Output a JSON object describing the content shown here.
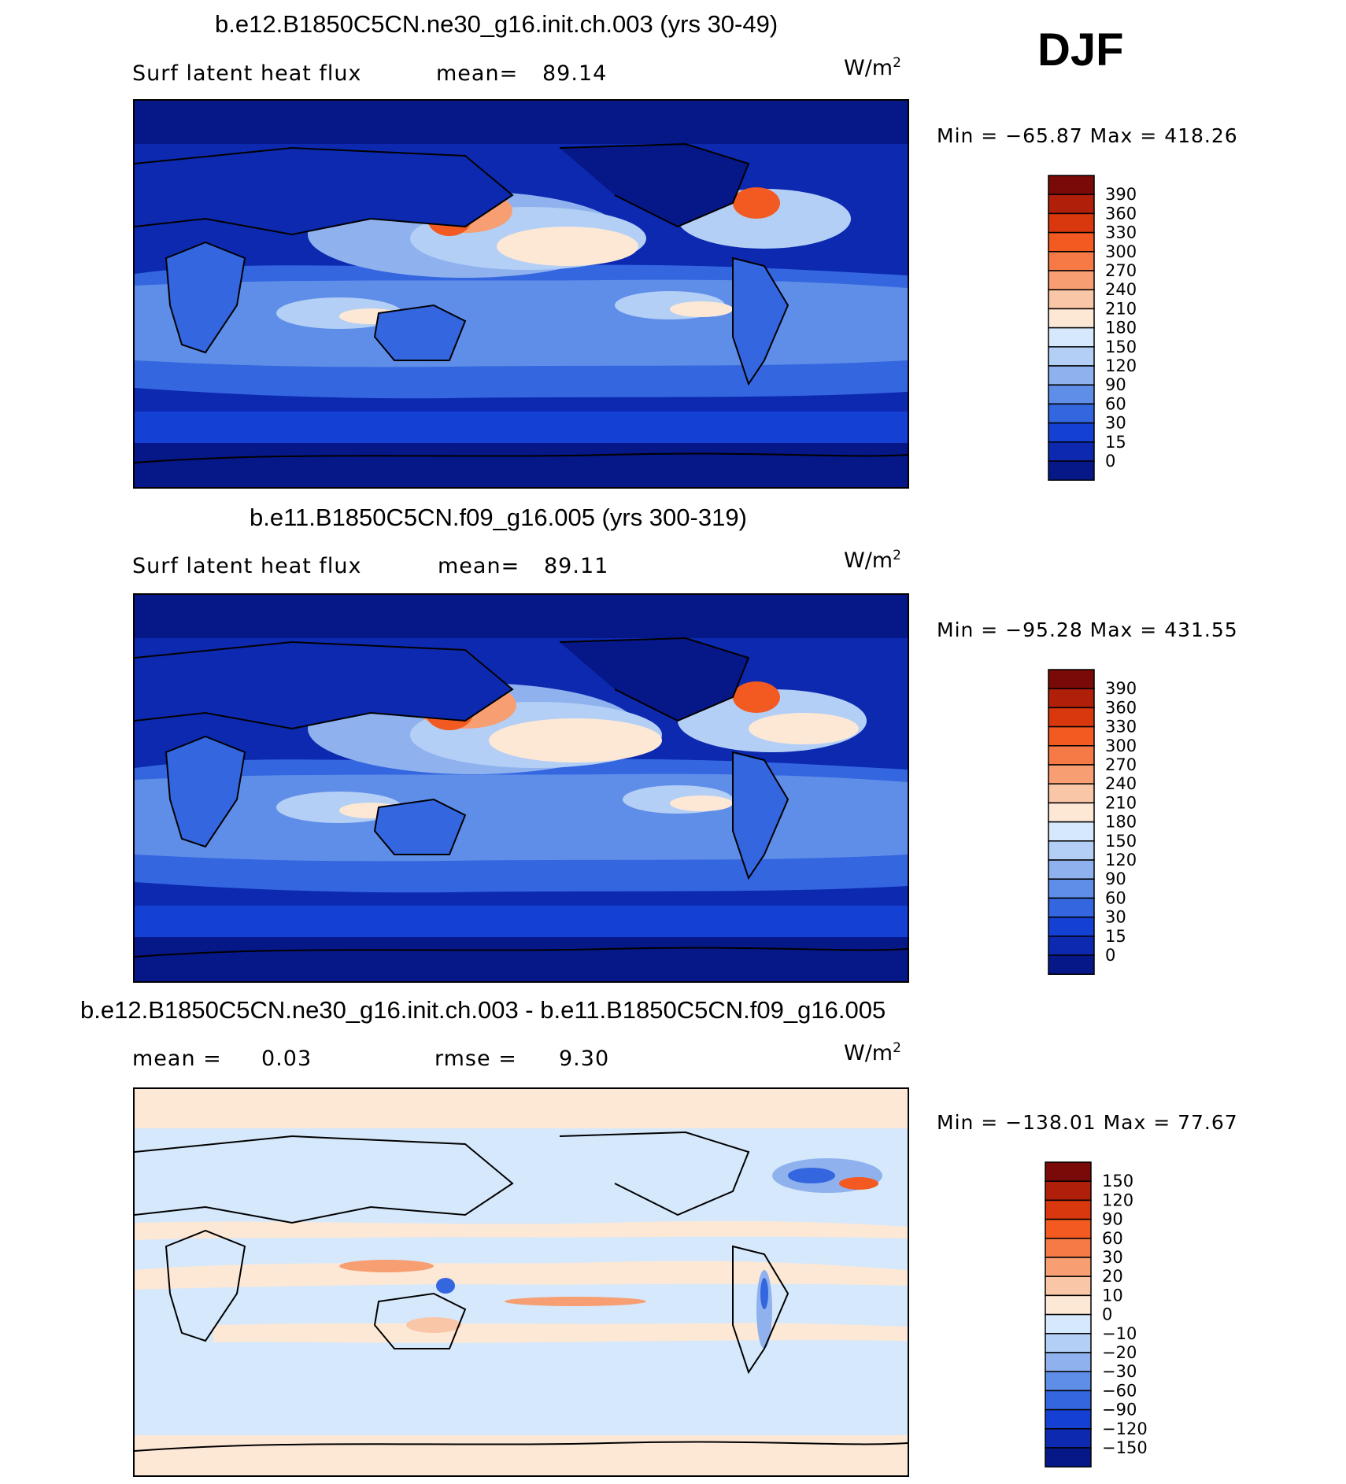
{
  "season": "DJF",
  "units_text": "W/m",
  "units_exp": "2",
  "panels": [
    {
      "title": "b.e12.B1850C5CN.ne30_g16.init.ch.003 (yrs 30-49)",
      "left_label": "Surf  latent  heat  flux",
      "stat_label": "mean=",
      "stat_value": "89.14",
      "minmax": "Min  =  −65.87  Max  =  418.26",
      "type": "field"
    },
    {
      "title": "b.e11.B1850C5CN.f09_g16.005 (yrs 300-319)",
      "left_label": "Surf  latent  heat  flux",
      "stat_label": "mean=",
      "stat_value": "89.11",
      "minmax": "Min  =  −95.28  Max  =  431.55",
      "type": "field"
    },
    {
      "title": "b.e12.B1850C5CN.ne30_g16.init.ch.003 - b.e11.B1850C5CN.f09_g16.005",
      "left_label": "mean  =",
      "left_value": "0.03",
      "stat_label": "rmse  =",
      "stat_value": "9.30",
      "minmax": "Min  =  −138.01  Max  =    77.67",
      "type": "diff"
    }
  ],
  "colorbars": {
    "field": {
      "labels": [
        "390",
        "360",
        "330",
        "300",
        "270",
        "240",
        "210",
        "180",
        "150",
        "120",
        "90",
        "60",
        "30",
        "15",
        "0"
      ],
      "colors": [
        "#7a0a08",
        "#b01f0a",
        "#d9370e",
        "#f25a22",
        "#f57a45",
        "#f79e72",
        "#fac6a8",
        "#fde8d6",
        "#d6e8fb",
        "#b4cff5",
        "#8fb2ef",
        "#5f8ee8",
        "#3466e0",
        "#1540d4",
        "#0c29b0",
        "#061787"
      ]
    },
    "diff": {
      "labels": [
        "150",
        "120",
        "90",
        "60",
        "30",
        "20",
        "10",
        "0",
        "−10",
        "−20",
        "−30",
        "−60",
        "−90",
        "−120",
        "−150"
      ],
      "colors": [
        "#7a0a08",
        "#b01f0a",
        "#d9370e",
        "#f25a22",
        "#f57a45",
        "#f79e72",
        "#fac6a8",
        "#fde8d6",
        "#d6e8fb",
        "#b4cff5",
        "#8fb2ef",
        "#5f8ee8",
        "#3466e0",
        "#1540d4",
        "#0c29b0",
        "#061787"
      ]
    }
  }
}
